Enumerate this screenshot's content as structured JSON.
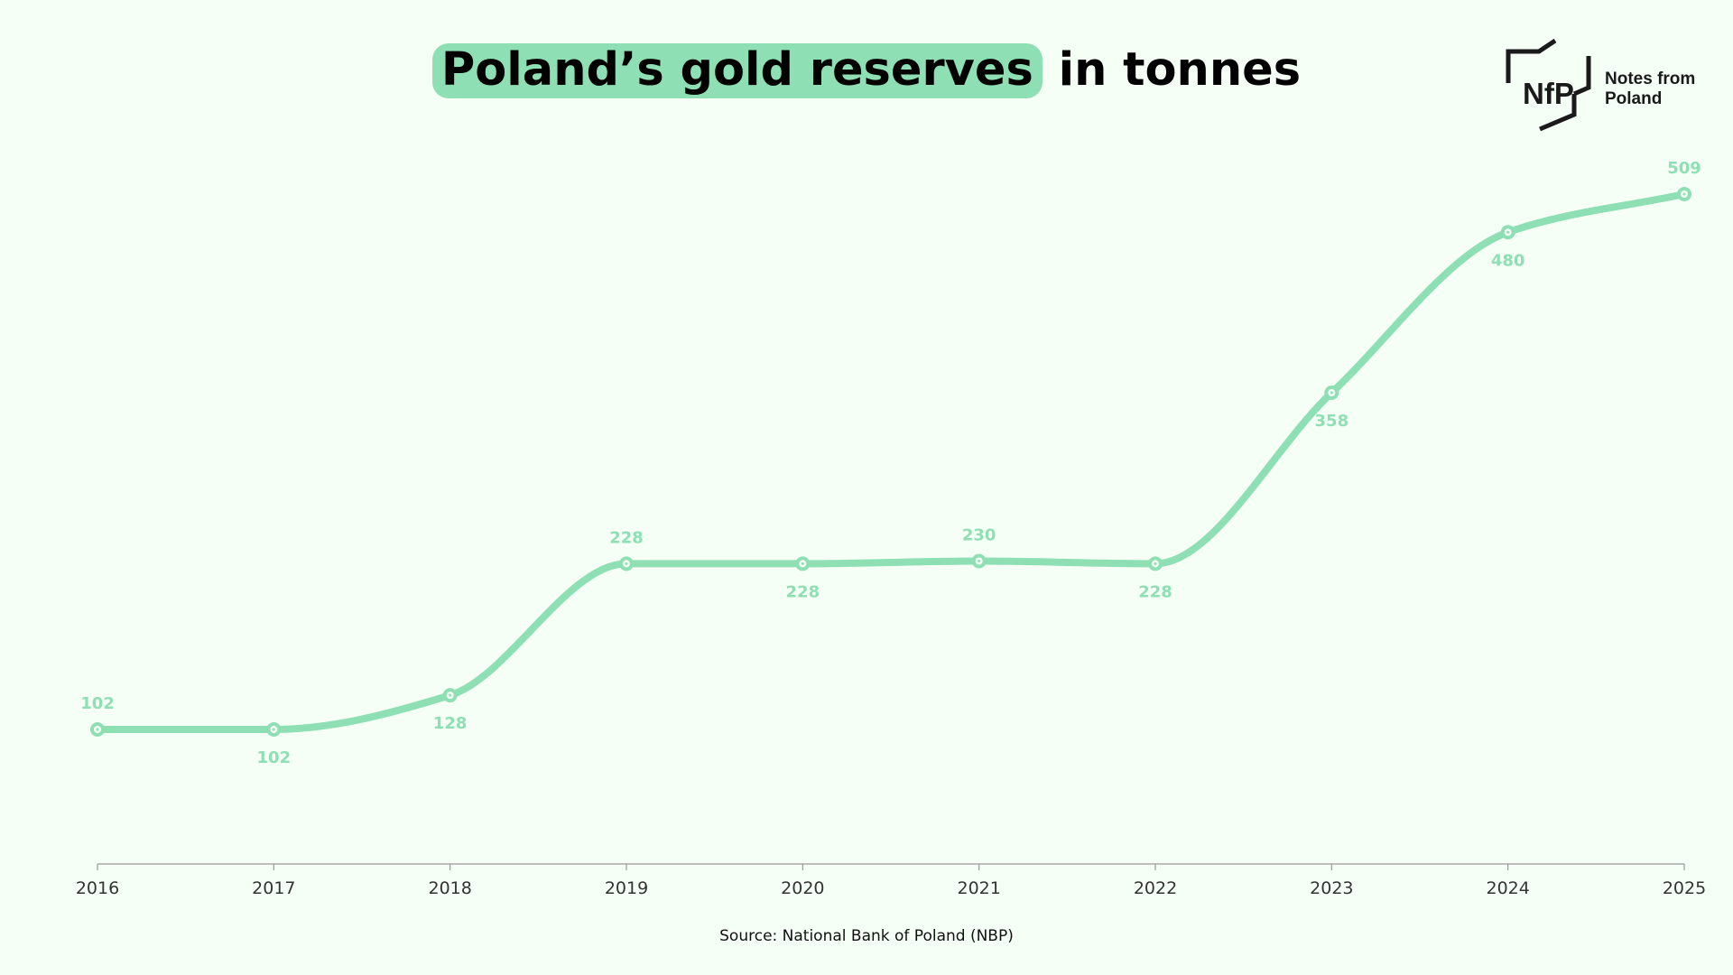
{
  "title": {
    "highlighted": "Poland’s gold reserves",
    "rest": " in tonnes"
  },
  "logo": {
    "mark": "NfP",
    "line1": "Notes from",
    "line2": "Poland"
  },
  "source": "Source: National Bank of Poland (NBP)",
  "colors": {
    "background": "#f6fff6",
    "line": "#8ee0b4",
    "label": "#8ee0b4",
    "axis": "#999999",
    "tick_label": "#333333"
  },
  "chart_data": {
    "type": "line",
    "title": "Poland’s gold reserves in tonnes",
    "xlabel": "",
    "ylabel": "",
    "categories": [
      "2016",
      "2017",
      "2018",
      "2019",
      "2020",
      "2021",
      "2022",
      "2023",
      "2024",
      "2025"
    ],
    "values": [
      102,
      102,
      128,
      228,
      228,
      230,
      228,
      358,
      480,
      509
    ],
    "label_position": [
      "above",
      "below",
      "below",
      "above",
      "below",
      "above",
      "below",
      "below",
      "below",
      "above"
    ],
    "smooth": true,
    "grid": false,
    "legend": "none"
  }
}
